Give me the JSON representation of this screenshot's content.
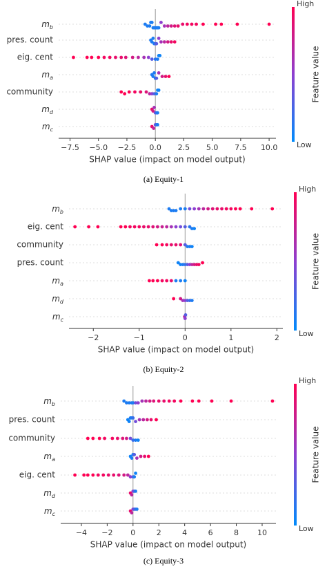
{
  "chart_data": [
    {
      "type": "beeswarm",
      "caption": "(a) Equity-1",
      "x_label": "SHAP value (impact on model output)",
      "colorbar_label": "Feature value",
      "colorbar_high": "High",
      "colorbar_low": "Low",
      "color_low": "#008bfb",
      "color_mid": "#8d3fd0",
      "color_high": "#ff0052",
      "xlim": [
        -8.5,
        10.6
      ],
      "xticks": [
        {
          "value": -7.5,
          "label": "−7.5"
        },
        {
          "value": -5,
          "label": "−5.0"
        },
        {
          "value": -2.5,
          "label": "−2.5"
        },
        {
          "value": 0,
          "label": "0.0"
        },
        2.5,
        {
          "value": 5,
          "label": "5.0"
        },
        7.5,
        {
          "value": 10,
          "label": "10.0"
        }
      ],
      "series": [
        {
          "name": "m_b",
          "values": [
            -0.9,
            -0.7,
            -0.5,
            -0.4,
            -0.3,
            -0.2,
            -0.1,
            0,
            0.1,
            0.2,
            0.3,
            0.5,
            0.8,
            1.1,
            1.4,
            1.7,
            2.0,
            2.4,
            2.8,
            3.2,
            3.6,
            4.2,
            5.3,
            5.8,
            7.2,
            10.0
          ],
          "feature_values": [
            0.1,
            0.1,
            0.1,
            0.1,
            0.1,
            0.1,
            0.1,
            0.1,
            0.1,
            0.1,
            0.1,
            0.5,
            0.6,
            0.7,
            0.8,
            0.85,
            0.9,
            0.9,
            0.95,
            0.95,
            0.95,
            1,
            1,
            1,
            1,
            1
          ]
        },
        {
          "name": "pres. count",
          "values": [
            -0.4,
            -0.3,
            -0.2,
            -0.1,
            0,
            0.1,
            0.3,
            0.5,
            0.8,
            1.1,
            1.4,
            1.7
          ],
          "feature_values": [
            0.1,
            0.1,
            0.1,
            0.1,
            0.2,
            0.3,
            0.5,
            0.6,
            0.7,
            0.8,
            0.9,
            0.95
          ]
        },
        {
          "name": "eig. cent",
          "values": [
            -7.2,
            -6.0,
            -5.6,
            -5.0,
            -4.5,
            -4.0,
            -3.5,
            -3.0,
            -2.6,
            -2.0,
            -1.5,
            -1.0,
            -0.6,
            -0.3,
            0,
            0.2,
            0.3,
            0.4
          ],
          "feature_values": [
            1,
            1,
            1,
            1,
            0.95,
            0.95,
            0.9,
            0.9,
            0.85,
            0.8,
            0.7,
            0.6,
            0.5,
            0.3,
            0.15,
            0.1,
            0.05,
            0.05
          ]
        },
        {
          "name": "m_a",
          "values": [
            -0.3,
            -0.2,
            -0.1,
            0,
            0.1,
            0.3,
            0.6,
            0.9,
            1.2
          ],
          "feature_values": [
            0.1,
            0.1,
            0.1,
            0.1,
            0.3,
            0.6,
            0.8,
            0.9,
            1
          ]
        },
        {
          "name": "community",
          "values": [
            -3.0,
            -2.7,
            -2.3,
            -1.8,
            -1.3,
            -0.8,
            -0.5,
            -0.3,
            -0.1,
            0.1,
            0.2,
            0.3
          ],
          "feature_values": [
            1,
            1,
            1,
            0.95,
            0.9,
            0.85,
            0.7,
            0.5,
            0.3,
            0.1,
            0.05,
            0.05
          ]
        },
        {
          "name": "m_d",
          "values": [
            -0.3,
            -0.2,
            -0.1,
            0,
            0.1,
            0.2
          ],
          "feature_values": [
            0.9,
            0.8,
            0.6,
            0.4,
            0.2,
            0.1
          ]
        },
        {
          "name": "m_c",
          "values": [
            -0.3,
            -0.15,
            0,
            0.1,
            0.2
          ],
          "feature_values": [
            0.9,
            0.7,
            0.4,
            0.2,
            0.1
          ]
        }
      ]
    },
    {
      "type": "beeswarm",
      "caption": "(b) Equity-2",
      "x_label": "SHAP value (impact on model output)",
      "colorbar_label": "Feature value",
      "colorbar_high": "High",
      "colorbar_low": "Low",
      "color_low": "#008bfb",
      "color_mid": "#8d3fd0",
      "color_high": "#ff0052",
      "xlim": [
        -2.53,
        2.13
      ],
      "xticks": [
        {
          "value": -2,
          "label": "−2"
        },
        {
          "value": -1,
          "label": "−1"
        },
        0,
        1,
        2
      ],
      "series": [
        {
          "name": "m_b",
          "values": [
            -0.35,
            -0.3,
            -0.25,
            -0.2,
            -0.1,
            0,
            0.1,
            0.2,
            0.3,
            0.4,
            0.5,
            0.6,
            0.7,
            0.8,
            0.9,
            1.0,
            1.1,
            1.2,
            1.45,
            1.9
          ],
          "feature_values": [
            0.1,
            0.1,
            0.1,
            0.1,
            0.1,
            0.1,
            0.4,
            0.5,
            0.6,
            0.7,
            0.8,
            0.85,
            0.9,
            0.9,
            0.95,
            0.95,
            1,
            1,
            1,
            1
          ]
        },
        {
          "name": "eig. cent",
          "values": [
            -2.4,
            -2.1,
            -1.9,
            -1.4,
            -1.3,
            -1.2,
            -1.1,
            -1.0,
            -0.9,
            -0.8,
            -0.7,
            -0.6,
            -0.5,
            -0.4,
            -0.3,
            -0.2,
            -0.1,
            0,
            0.1,
            0.15,
            0.2
          ],
          "feature_values": [
            1,
            1,
            1,
            1,
            1,
            0.95,
            0.95,
            0.95,
            0.9,
            0.9,
            0.85,
            0.8,
            0.75,
            0.7,
            0.6,
            0.5,
            0.4,
            0.3,
            0.15,
            0.1,
            0.05
          ]
        },
        {
          "name": "community",
          "values": [
            -0.62,
            -0.5,
            -0.4,
            -0.3,
            -0.2,
            -0.1,
            0,
            0.05,
            0.1,
            0.15
          ],
          "feature_values": [
            1,
            1,
            0.95,
            0.9,
            0.9,
            0.85,
            0.3,
            0.1,
            0.1,
            0.05
          ]
        },
        {
          "name": "pres. count",
          "values": [
            -0.15,
            -0.1,
            -0.05,
            0,
            0.05,
            0.1,
            0.15,
            0.2,
            0.25,
            0.3,
            0.38
          ],
          "feature_values": [
            0.05,
            0.05,
            0.1,
            0.15,
            0.3,
            0.5,
            0.7,
            0.8,
            0.9,
            0.95,
            1
          ]
        },
        {
          "name": "m_a",
          "values": [
            -0.78,
            -0.7,
            -0.6,
            -0.5,
            -0.4,
            -0.3,
            -0.2,
            -0.1,
            0
          ],
          "feature_values": [
            1,
            1,
            1,
            0.95,
            0.95,
            0.9,
            0.1,
            0.1,
            0.05
          ]
        },
        {
          "name": "m_d",
          "values": [
            -0.25,
            -0.1,
            -0.05,
            0,
            0.05,
            0.1,
            0.15
          ],
          "feature_values": [
            1,
            0.8,
            0.6,
            0.5,
            0.3,
            0.2,
            0.1
          ]
        },
        {
          "name": "m_c",
          "values": [
            -0.01,
            0,
            0.01
          ],
          "feature_values": [
            0.7,
            0.5,
            0.3
          ]
        }
      ]
    },
    {
      "type": "beeswarm",
      "caption": "(c) Equity-3",
      "x_label": "SHAP value (impact on model output)",
      "colorbar_label": "Feature value",
      "colorbar_high": "High",
      "colorbar_low": "Low",
      "color_low": "#008bfb",
      "color_mid": "#8d3fd0",
      "color_high": "#ff0052",
      "xlim": [
        -5.6,
        11.07
      ],
      "xticks": [
        {
          "value": -4,
          "label": "−4"
        },
        {
          "value": -2,
          "label": "−2"
        },
        0,
        2,
        4,
        6,
        8,
        10
      ],
      "series": [
        {
          "name": "m_b",
          "values": [
            -0.7,
            -0.5,
            -0.3,
            -0.1,
            0,
            0.2,
            0.4,
            0.7,
            1,
            1.3,
            1.6,
            2,
            2.4,
            2.8,
            3.2,
            3.7,
            4.6,
            5.1,
            6.1,
            7.6,
            10.8
          ],
          "feature_values": [
            0.1,
            0.1,
            0.1,
            0.1,
            0.1,
            0.4,
            0.5,
            0.6,
            0.7,
            0.8,
            0.85,
            0.9,
            0.9,
            0.95,
            0.95,
            1,
            1,
            1,
            1,
            1,
            1
          ]
        },
        {
          "name": "pres. count",
          "values": [
            -0.4,
            -0.3,
            -0.2,
            -0.1,
            0,
            0.2,
            0.5,
            0.8,
            1.1,
            1.4,
            1.8
          ],
          "feature_values": [
            0.05,
            0.05,
            0.1,
            0.1,
            0.2,
            0.4,
            0.6,
            0.7,
            0.8,
            0.9,
            1
          ]
        },
        {
          "name": "community",
          "values": [
            -3.5,
            -3.1,
            -2.6,
            -2.2,
            -1.6,
            -1.2,
            -0.8,
            -0.5,
            -0.2,
            0,
            0.2,
            0.4
          ],
          "feature_values": [
            1,
            1,
            1,
            0.95,
            0.95,
            0.9,
            0.85,
            0.8,
            0.4,
            0.2,
            0.1,
            0.05
          ]
        },
        {
          "name": "m_a",
          "values": [
            -0.2,
            -0.1,
            0,
            0.1,
            0.3,
            0.6,
            0.9,
            1.2
          ],
          "feature_values": [
            0.05,
            0.1,
            0.1,
            0.3,
            0.6,
            0.8,
            0.9,
            1
          ]
        },
        {
          "name": "eig. cent",
          "values": [
            -4.5,
            -3.8,
            -3.5,
            -3.1,
            -2.7,
            -2.3,
            -1.9,
            -1.5,
            -1.1,
            -0.7,
            -0.4,
            -0.2,
            0,
            0.1,
            0.2
          ],
          "feature_values": [
            1,
            1,
            1,
            1,
            0.95,
            0.95,
            0.9,
            0.9,
            0.85,
            0.8,
            0.7,
            0.5,
            0.3,
            0.1,
            0.05
          ]
        },
        {
          "name": "m_d",
          "values": [
            -0.2,
            -0.1,
            0,
            0.1,
            0.2
          ],
          "feature_values": [
            0.9,
            0.7,
            0.5,
            0.3,
            0.1
          ]
        },
        {
          "name": "m_c",
          "values": [
            -0.2,
            -0.1,
            0,
            0.1,
            0.2,
            0.3
          ],
          "feature_values": [
            0.9,
            0.7,
            0.5,
            0.3,
            0.2,
            0.1
          ]
        }
      ]
    }
  ]
}
